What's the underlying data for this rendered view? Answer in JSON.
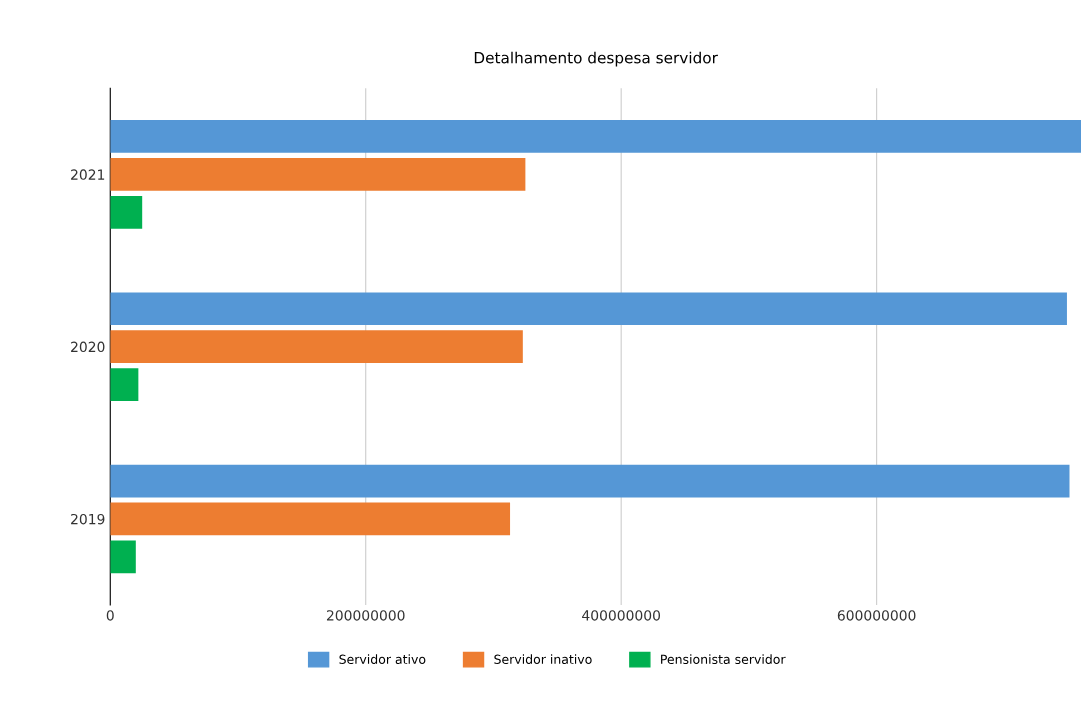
{
  "chart_data": {
    "type": "bar",
    "orientation": "horizontal",
    "title": "Detalhamento despesa servidor",
    "categories": [
      "2021",
      "2020",
      "2019"
    ],
    "series": [
      {
        "name": "Servidor ativo",
        "color": "#5597d6",
        "values": [
          760000000,
          749000000,
          751000000
        ]
      },
      {
        "name": "Servidor inativo",
        "color": "#ed7d31",
        "values": [
          325000000,
          323000000,
          313000000
        ]
      },
      {
        "name": "Pensionista servidor",
        "color": "#00b050",
        "values": [
          25000000,
          22000000,
          20000000
        ]
      }
    ],
    "xlim": [
      0,
      760000000
    ],
    "xticks": [
      0,
      200000000,
      400000000,
      600000000
    ],
    "grid": "x",
    "legend": "bottom"
  }
}
